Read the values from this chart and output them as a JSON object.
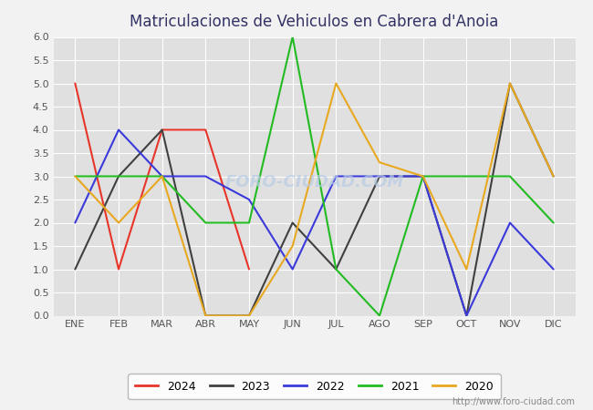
{
  "title": "Matriculaciones de Vehiculos en Cabrera d'Anoia",
  "months": [
    "ENE",
    "FEB",
    "MAR",
    "ABR",
    "MAY",
    "JUN",
    "JUL",
    "AGO",
    "SEP",
    "OCT",
    "NOV",
    "DIC"
  ],
  "series": {
    "2024": [
      5,
      1,
      4,
      4,
      1,
      null,
      null,
      null,
      null,
      null,
      null,
      null
    ],
    "2023": [
      1,
      3,
      4,
      0,
      0,
      2,
      1,
      3,
      3,
      0,
      5,
      3
    ],
    "2022": [
      2,
      4,
      3,
      3,
      2.5,
      1,
      3,
      3,
      3,
      0,
      2,
      1
    ],
    "2021": [
      3,
      3,
      3,
      2,
      2,
      6,
      1,
      0,
      3,
      3,
      3,
      2
    ],
    "2020": [
      3,
      2,
      3,
      0,
      0,
      1.5,
      5,
      3.3,
      3,
      1,
      5,
      3
    ]
  },
  "colors": {
    "2024": "#e8352a",
    "2023": "#404040",
    "2022": "#3a3adb",
    "2021": "#22bb22",
    "2020": "#e8a820"
  },
  "ylim": [
    0,
    6.0
  ],
  "yticks": [
    0.0,
    0.5,
    1.0,
    1.5,
    2.0,
    2.5,
    3.0,
    3.5,
    4.0,
    4.5,
    5.0,
    5.5,
    6.0
  ],
  "title_color": "#333366",
  "background_color": "#f2f2f2",
  "plot_bg_color": "#e0e0e0",
  "grid_color": "#ffffff",
  "watermark": "FORO-CIUDAD.COM",
  "watermark_color": "#b8cce4",
  "url": "http://www.foro-ciudad.com",
  "url_color": "#888888",
  "title_fontsize": 12,
  "tick_fontsize": 8,
  "linewidth": 1.5,
  "legend_fontsize": 9
}
